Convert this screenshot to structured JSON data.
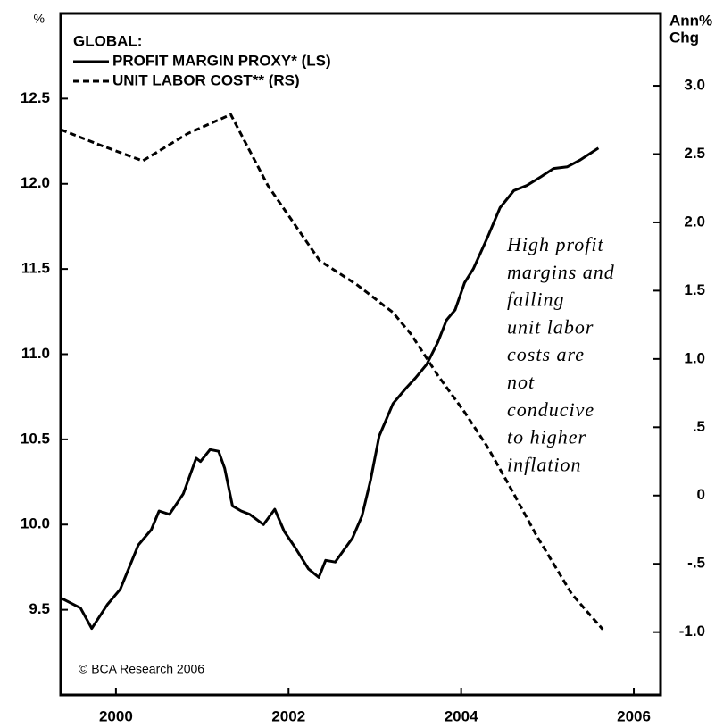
{
  "chart_data": {
    "type": "line",
    "y_label": "%",
    "y2_label": [
      "Ann%",
      "Chg"
    ],
    "legend_title": "GLOBAL:",
    "annotation": [
      "High profit",
      "margins and",
      "falling",
      "unit labor",
      "costs are",
      "not",
      "conducive",
      "to higher",
      "inflation"
    ],
    "source": "© BCA Research 2006",
    "xlim": [
      1999.36,
      2006.31
    ],
    "xticks": [
      2000,
      2002,
      2004,
      2006
    ],
    "ylim": [
      9.0,
      13.0
    ],
    "yticks": [
      {
        "value": 9.5,
        "label": "9.5"
      },
      {
        "value": 10,
        "label": "10.0"
      },
      10.5,
      {
        "value": 11,
        "label": "11.0"
      },
      11.5,
      {
        "value": 12,
        "label": "12.0"
      },
      12.5
    ],
    "y2lim": [
      -1.46,
      3.53
    ],
    "y2ticks": [
      {
        "value": -1,
        "label": "-1.0"
      },
      {
        "value": -0.5,
        "label": "-.5"
      },
      0,
      {
        "value": 0.5,
        "label": ".5"
      },
      {
        "value": 1,
        "label": "1.0"
      },
      1.5,
      {
        "value": 2,
        "label": "2.0"
      },
      2.5,
      {
        "value": 3,
        "label": "3.0"
      }
    ],
    "series": [
      {
        "name": "PROFIT MARGIN PROXY* (LS)",
        "color": "#000000",
        "dash": "solid",
        "axis": "y",
        "x": [
          1999.36,
          1999.59,
          1999.72,
          1999.9,
          2000.05,
          2000.26,
          2000.41,
          2000.5,
          2000.62,
          2000.78,
          2000.93,
          2000.98,
          2001.09,
          2001.19,
          2001.26,
          2001.35,
          2001.45,
          2001.55,
          2001.71,
          2001.84,
          2001.95,
          2002.07,
          2002.23,
          2002.35,
          2002.43,
          2002.54,
          2002.64,
          2002.74,
          2002.85,
          2002.95,
          2003.05,
          2003.21,
          2003.36,
          2003.47,
          2003.6,
          2003.73,
          2003.83,
          2003.93,
          2004.04,
          2004.14,
          2004.3,
          2004.45,
          2004.61,
          2004.76,
          2004.92,
          2005.07,
          2005.23,
          2005.38,
          2005.59
        ],
        "values": [
          9.57,
          9.51,
          9.39,
          9.53,
          9.62,
          9.88,
          9.97,
          10.08,
          10.06,
          10.18,
          10.39,
          10.37,
          10.44,
          10.43,
          10.33,
          10.11,
          10.08,
          10.06,
          10.0,
          10.09,
          9.96,
          9.87,
          9.74,
          9.69,
          9.79,
          9.78,
          9.85,
          9.92,
          10.05,
          10.26,
          10.52,
          10.71,
          10.8,
          10.86,
          10.94,
          11.07,
          11.2,
          11.26,
          11.42,
          11.5,
          11.68,
          11.86,
          11.96,
          11.99,
          12.04,
          12.09,
          12.1,
          12.14,
          12.21
        ]
      },
      {
        "name": "UNIT LABOR COST** (RS)",
        "color": "#000000",
        "dash": "dashed",
        "axis": "y2",
        "x": [
          1999.36,
          1999.8,
          2000.31,
          2000.83,
          2001.33,
          2001.76,
          2002.36,
          2002.8,
          2003.21,
          2003.42,
          2003.73,
          2004.04,
          2004.3,
          2004.56,
          2004.87,
          2005.28,
          2005.64
        ],
        "values": [
          2.68,
          2.57,
          2.45,
          2.65,
          2.79,
          2.27,
          1.72,
          1.54,
          1.34,
          1.18,
          0.88,
          0.61,
          0.36,
          0.07,
          -0.29,
          -0.72,
          -0.98
        ]
      }
    ]
  }
}
